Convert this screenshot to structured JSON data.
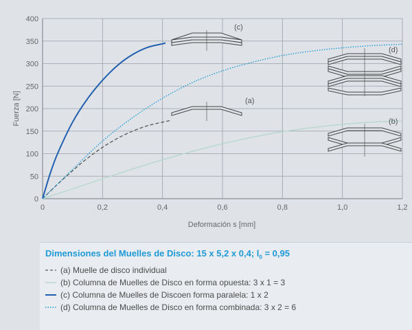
{
  "chart_data": {
    "type": "line",
    "xlabel": "Deformación s [mm]",
    "ylabel": "Fuerza [N]",
    "xlim": [
      0,
      1.2
    ],
    "ylim": [
      0,
      400
    ],
    "x_ticks": [
      "0",
      "0,2",
      "0,4",
      "0,6",
      "0,8",
      "1,0",
      "1,2"
    ],
    "y_ticks": [
      "0",
      "50",
      "100",
      "150",
      "200",
      "250",
      "300",
      "350",
      "400"
    ],
    "grid": true,
    "series": [
      {
        "name": "(a)",
        "style": "dashed",
        "color": "#555555",
        "x": [
          0,
          0.05,
          0.1,
          0.15,
          0.2,
          0.25,
          0.3,
          0.35,
          0.4,
          0.43
        ],
        "y": [
          0,
          32,
          62,
          90,
          114,
          134,
          150,
          162,
          170,
          174
        ]
      },
      {
        "name": "(b)",
        "style": "solid",
        "color": "#b9d8cf",
        "x": [
          0,
          0.15,
          0.3,
          0.45,
          0.6,
          0.75,
          0.9,
          1.05,
          1.2
        ],
        "y": [
          0,
          33,
          66,
          96,
          122,
          143,
          158,
          168,
          173
        ]
      },
      {
        "name": "(c)",
        "style": "solid",
        "color": "#1f5fae",
        "x": [
          0,
          0.025,
          0.05,
          0.1,
          0.15,
          0.2,
          0.25,
          0.3,
          0.35,
          0.4,
          0.41
        ],
        "y": [
          0,
          55,
          100,
          170,
          222,
          263,
          296,
          320,
          336,
          344,
          346
        ]
      },
      {
        "name": "(d)",
        "style": "dotted",
        "color": "#1f9ad6",
        "x": [
          0,
          0.1,
          0.2,
          0.3,
          0.4,
          0.5,
          0.6,
          0.7,
          0.8,
          0.9,
          1.0,
          1.1,
          1.2
        ],
        "y": [
          0,
          65,
          128,
          180,
          223,
          258,
          284,
          303,
          318,
          328,
          335,
          340,
          343
        ]
      }
    ],
    "annotations": [
      "(a)",
      "(b)",
      "(c)",
      "(d)"
    ]
  },
  "legend": {
    "title_main": "Dimensiones del Muelles de Disco: 15 x 5,2 x 0,4; l",
    "title_sub": "0",
    "title_end": " = 0,95",
    "items": [
      "(a) Muelle de disco individual",
      "(b) Columna de Muelles de Disco en forma opuesta: 3 x 1 = 3",
      "(c) Columna de Muelles de Discoen forma paralela: 1 x 2",
      "(d) Columna de Muelles de Disco en forma combinada: 3 x 2 = 6"
    ]
  }
}
